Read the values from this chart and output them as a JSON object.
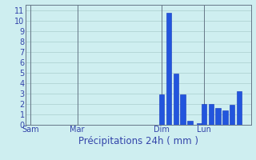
{
  "title": "Précipitations 24h ( mm )",
  "ylim": [
    0,
    11.5
  ],
  "yticks": [
    0,
    1,
    2,
    3,
    4,
    5,
    6,
    7,
    8,
    9,
    10,
    11
  ],
  "background_color": "#ceeef0",
  "grid_color": "#aacece",
  "bar_color": "#2255dd",
  "bar_edge_color": "#1133bb",
  "x_tick_labels": [
    "Sam",
    "Mar",
    "Dim",
    "Lun"
  ],
  "x_tick_positions": [
    2,
    22,
    58,
    76
  ],
  "vline_positions": [
    2,
    22,
    58,
    76
  ],
  "vline_color": "#667788",
  "bar_positions": [
    58,
    61,
    64,
    67,
    70,
    74,
    76,
    79,
    82,
    85,
    88,
    91
  ],
  "bar_heights": [
    2.9,
    10.7,
    4.9,
    2.9,
    0.4,
    0.15,
    2.0,
    2.0,
    1.6,
    1.4,
    1.9,
    3.2
  ],
  "bar_width": 2.2,
  "xlim": [
    0,
    96
  ],
  "tick_fontsize": 7,
  "xlabel_fontsize": 8.5
}
